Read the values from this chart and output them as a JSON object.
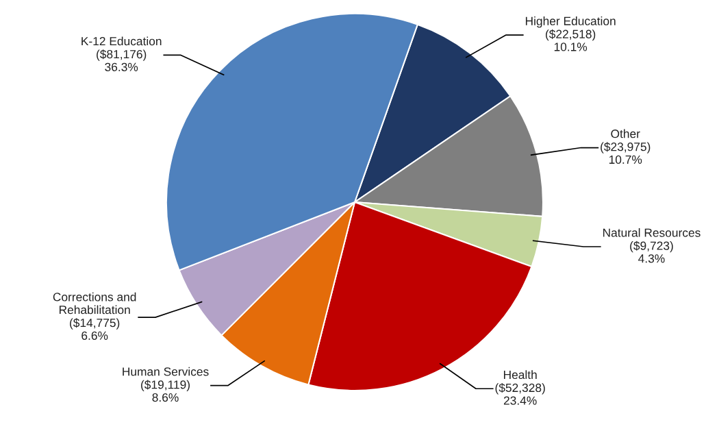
{
  "chart_data": {
    "type": "pie",
    "categories": [
      "Higher Education",
      "Other",
      "Natural Resources",
      "Health",
      "Human Services",
      "Corrections and Rehabilitation",
      "K-12 Education"
    ],
    "values": [
      22518,
      23975,
      9723,
      52328,
      19119,
      14775,
      81176
    ],
    "colors": [
      "#1f3864",
      "#7f7f7f",
      "#c3d69b",
      "#c00000",
      "#e46c0a",
      "#b3a2c7",
      "#4f81bd"
    ],
    "value_labels": [
      "($22,518)\n10.1%",
      "($23,975)\n10.7%",
      "($9,723)\n4.3%",
      "($52,328)\n23.4%",
      "($19,119)\n8.6%",
      "($14,775)\n6.6%",
      "($81,176)\n36.3%"
    ],
    "legend": false
  }
}
